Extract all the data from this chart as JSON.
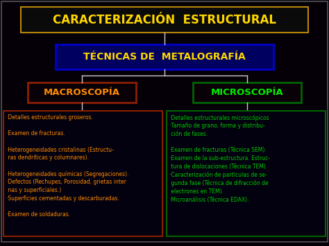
{
  "bg_color": "#050008",
  "title": "CARACTERIZACIÓN  ESTRUCTURAL",
  "title_color": "#FFD700",
  "title_box_edge": "#B8860B",
  "title_box_face": "#0a0a0a",
  "subtitle": "TÉCNICAS DE  METALOGRAFÍA",
  "subtitle_color": "#FFD700",
  "subtitle_box_edge": "#0000CC",
  "subtitle_box_face": "#000060",
  "left_header": "MACROSCOPÍA",
  "left_header_color": "#FF8C00",
  "left_header_box_edge": "#8B2000",
  "left_header_box_face": "#0a0008",
  "right_header": "MICROSCOPÍA",
  "right_header_color": "#00EE00",
  "right_header_box_edge": "#006400",
  "right_header_box_face": "#0a0008",
  "left_items": [
    "·Detalles estructurales groseros.",
    "",
    "·Examen de fracturas.",
    "",
    "·Heterogeneidades cristalinas (Estructu-",
    " ras dendríticas y columnares).",
    "",
    "·Heterogeneidades químicas (Segregaciones).",
    "·Defectos (Rechupes, Porosidad, grietas inter",
    " nas y superficiales.)",
    "·Superficies cementadas y descarburadas.",
    "",
    "·Examen de soldaduras."
  ],
  "left_text_color": "#FF8C00",
  "left_box_edge": "#8B2000",
  "left_box_face": "#03000F",
  "right_items": [
    "·Detalles estructurales microscópicos",
    "·Tamaño de grano, forma y distribu-",
    " ción de fases.",
    "",
    "·Examen de fracturas (Técnica SEM).",
    "·Examen de la sub-estructura. Estruc-",
    " tura de dislocaciones (Técnica TEM).",
    "·Caracterización de partículas de se-",
    " gunda fase (Técnica de difracción de",
    " electrones en TEM).",
    "·Microanálisis (Técnica EDAX)."
  ],
  "right_text_color": "#00CC00",
  "right_box_edge": "#006400",
  "right_box_face": "#03000F",
  "line_color": "#CCCCCC"
}
